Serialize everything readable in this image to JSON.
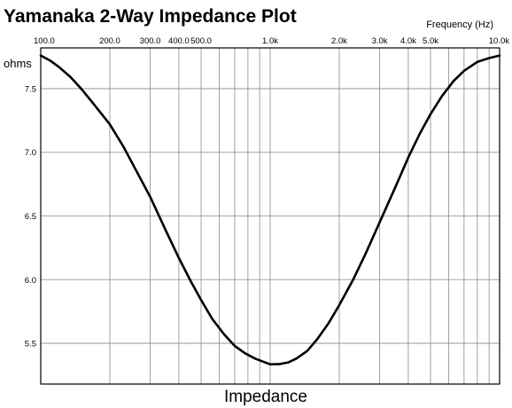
{
  "chart_data": {
    "type": "line",
    "title": "Yamanaka 2-Way Impedance Plot",
    "x_axis": {
      "unit_label": "Frequency  (Hz)",
      "scale": "log",
      "range": [
        100,
        10000
      ],
      "ticks": [
        {
          "value": 100,
          "label": "100.0"
        },
        {
          "value": 200,
          "label": "200.0"
        },
        {
          "value": 300,
          "label": "300.0"
        },
        {
          "value": 400,
          "label": "400.0"
        },
        {
          "value": 500,
          "label": "500.0"
        },
        {
          "value": 1000,
          "label": "1.0k"
        },
        {
          "value": 2000,
          "label": "2.0k"
        },
        {
          "value": 3000,
          "label": "3.0k"
        },
        {
          "value": 4000,
          "label": "4.0k"
        },
        {
          "value": 5000,
          "label": "5.0k"
        },
        {
          "value": 10000,
          "label": "10.0k"
        }
      ],
      "minor_grid": [
        600,
        700,
        800,
        900,
        6000,
        7000,
        8000,
        9000
      ]
    },
    "y_axis": {
      "label": "ohms",
      "range": [
        5.18,
        7.82
      ],
      "ticks": [
        {
          "value": 7.5,
          "label": "7.5"
        },
        {
          "value": 7.0,
          "label": "7.0"
        },
        {
          "value": 6.5,
          "label": "6.5"
        },
        {
          "value": 6.0,
          "label": "6.0"
        },
        {
          "value": 5.5,
          "label": "5.5"
        }
      ]
    },
    "xlabel": "Impedance",
    "grid": true,
    "series": [
      {
        "color": "#000000",
        "x": [
          100,
          110,
          120,
          135,
          150,
          170,
          200,
          230,
          260,
          300,
          350,
          400,
          450,
          500,
          560,
          630,
          700,
          780,
          860,
          950,
          1000,
          1100,
          1200,
          1300,
          1450,
          1600,
          1800,
          2000,
          2300,
          2600,
          3000,
          3500,
          4000,
          4500,
          5000,
          5600,
          6300,
          7000,
          8000,
          9000,
          10000
        ],
        "y": [
          7.76,
          7.72,
          7.67,
          7.59,
          7.5,
          7.38,
          7.22,
          7.04,
          6.86,
          6.65,
          6.39,
          6.17,
          5.99,
          5.84,
          5.69,
          5.57,
          5.48,
          5.42,
          5.38,
          5.35,
          5.335,
          5.337,
          5.35,
          5.38,
          5.44,
          5.53,
          5.66,
          5.8,
          6.0,
          6.2,
          6.45,
          6.72,
          6.96,
          7.15,
          7.3,
          7.44,
          7.56,
          7.64,
          7.71,
          7.74,
          7.76
        ]
      }
    ]
  }
}
